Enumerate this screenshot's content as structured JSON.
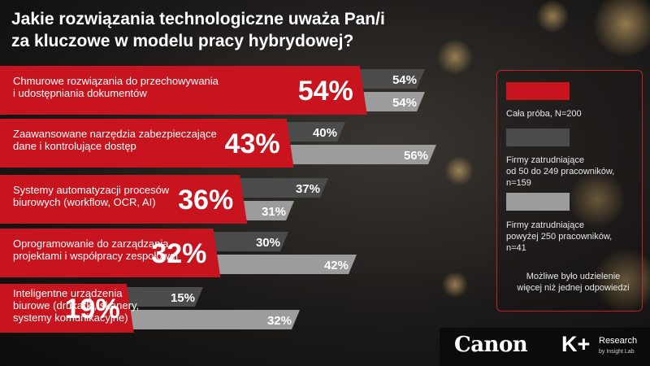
{
  "title_line1": "Jakie rozwiązania technologiczne uważa Pan/i",
  "title_line2": "za kluczowe w modelu pracy hybrydowej?",
  "chart_data": {
    "type": "bar",
    "categories": [
      [
        "Chmurowe rozwiązania do przechowywania",
        "i udostępniania dokumentów"
      ],
      [
        "Zaawansowane narzędzia zabezpieczające",
        "dane i kontrolujące dostęp"
      ],
      [
        "Systemy automatyzacji procesów",
        "biurowych (workflow, OCR, AI)"
      ],
      [
        "Oprogramowanie do zarządzania",
        "projektami i współpracy zespołowej"
      ],
      [
        "Inteligentne urządzenia",
        "biurowe (drukarki, skanery,",
        "systemy komunikacyjne)"
      ]
    ],
    "series": [
      {
        "name": "Cała próba, N=200",
        "values": [
          54,
          43,
          36,
          32,
          19
        ],
        "color": "#c8141e"
      },
      {
        "name": "Firmy zatrudniające od 50 do 249 pracowników, n=159",
        "values": [
          54,
          40,
          37,
          30,
          15
        ],
        "color": "#4b4b4b"
      },
      {
        "name": "Firmy zatrudniające powyżej 250 pracowników, n=41",
        "values": [
          54,
          56,
          31,
          42,
          32
        ],
        "color": "#9c9c9c"
      }
    ],
    "value_suffix": "%",
    "legend_position": "right"
  },
  "legend": {
    "items": [
      {
        "lines": [
          "Cała próba, N=200"
        ],
        "color": "#c8141e"
      },
      {
        "lines": [
          "Firmy zatrudniające",
          "od 50 do 249 pracowników,",
          "n=159"
        ],
        "color": "#4b4b4b"
      },
      {
        "lines": [
          "Firmy zatrudniające",
          "powyżej 250 pracowników,",
          "n=41"
        ],
        "color": "#9c9c9c"
      }
    ],
    "note_lines": [
      "Możliwe było udzielenie",
      "więcej niż jednej odpowiedzi"
    ]
  },
  "footer": {
    "canon": "Canon",
    "kplus": "K+",
    "research": "Research",
    "research_sub": "by Insight Lab"
  }
}
